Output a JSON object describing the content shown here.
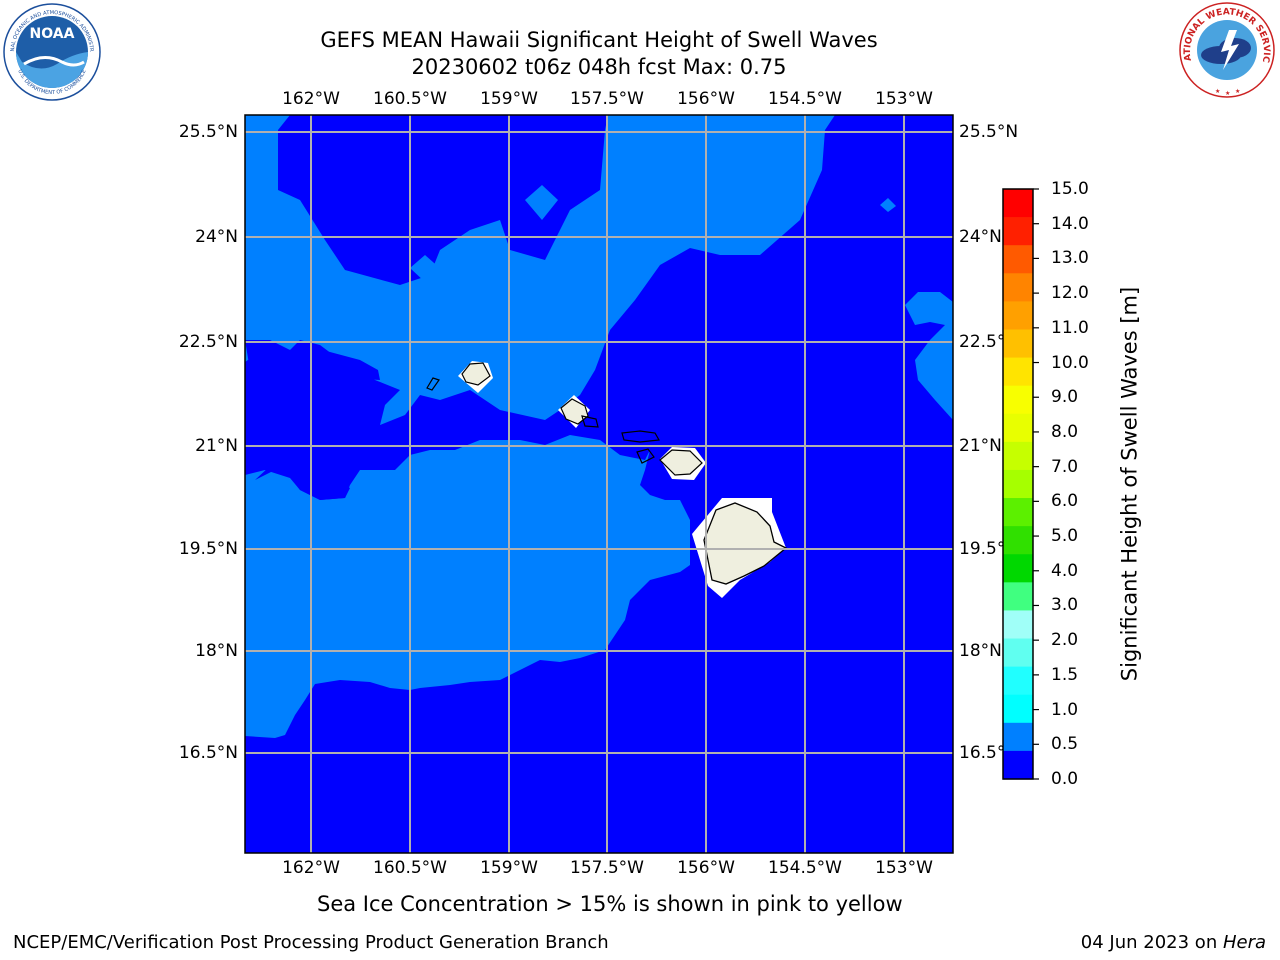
{
  "title": {
    "line1": "GEFS MEAN Hawaii Significant Height of Swell Waves",
    "line2": "20230602 t06z 048h fcst   Max: 0.75"
  },
  "map": {
    "lon_labels": [
      "162°W",
      "160.5°W",
      "159°W",
      "157.5°W",
      "156°W",
      "154.5°W",
      "153°W"
    ],
    "lat_labels": [
      "25.5°N",
      "24°N",
      "22.5°N",
      "21°N",
      "19.5°N",
      "18°N",
      "16.5°N"
    ],
    "colors": {
      "ocean_low": "#0000ff",
      "ocean_mid": "#0080ff",
      "land": "#efefdf",
      "grid": "#b0b0b0"
    }
  },
  "colorbar": {
    "label": "Significant Height of Swell Waves [m]",
    "ticks": [
      "15.0",
      "14.0",
      "13.0",
      "12.0",
      "11.0",
      "10.0",
      "9.0",
      "8.0",
      "7.0",
      "6.0",
      "5.0",
      "4.0",
      "3.0",
      "2.0",
      "1.5",
      "1.0",
      "0.5",
      "0.0"
    ],
    "colors": [
      "#ff0000",
      "#ff2000",
      "#ff5a00",
      "#ff8400",
      "#ffa000",
      "#ffc000",
      "#ffe400",
      "#f8ff00",
      "#e8ff00",
      "#c6ff00",
      "#a6ff00",
      "#5cf000",
      "#30e000",
      "#00d800",
      "#40ff80",
      "#a0fff8",
      "#60fff0",
      "#20ffff",
      "#00ffff",
      "#0080ff",
      "#0000ff"
    ]
  },
  "caption": "Sea Ice Concentration > 15% is shown in pink to yellow",
  "footer": {
    "left": "NCEP/EMC/Verification Post Processing Product Generation Branch",
    "right_date": "04 Jun 2023 on ",
    "right_host": "Hera"
  },
  "logos": {
    "noaa_text": "NOAA",
    "noaa_ring_top": "NATIONAL OCEANIC AND ATMOSPHERIC ADMINISTRATION",
    "noaa_ring_bottom": "U.S. DEPARTMENT OF COMMERCE",
    "nws_ring": "NATIONAL WEATHER SERVICE"
  }
}
